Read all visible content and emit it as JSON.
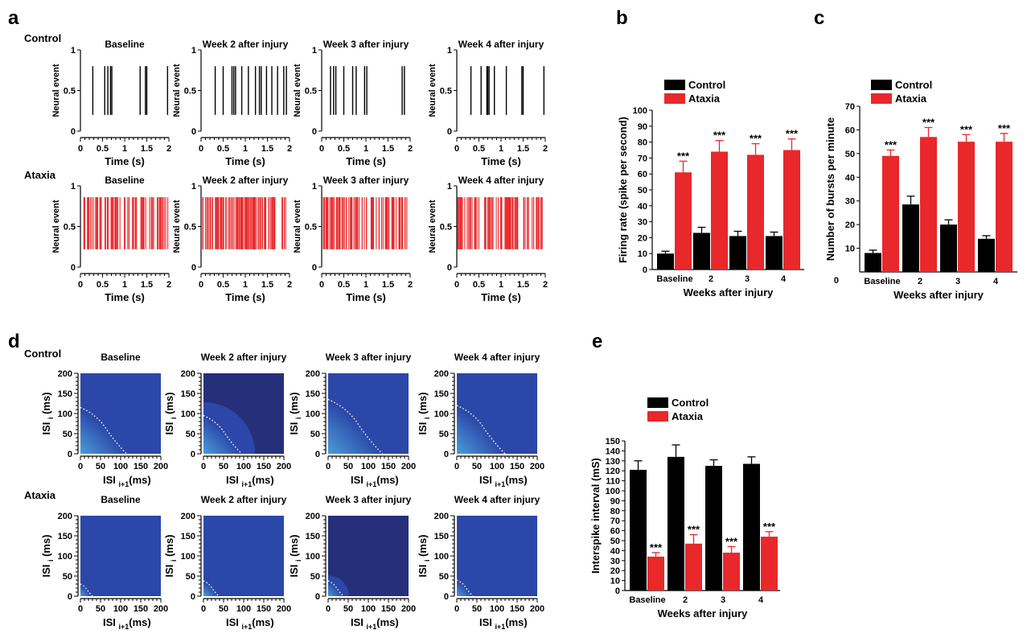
{
  "panel_letters": {
    "a": "a",
    "b": "b",
    "c": "c",
    "d": "d",
    "e": "e"
  },
  "colors": {
    "control": "#000000",
    "ataxia": "#e8282b",
    "heat_bg": "#2b47a8",
    "heat_dark": "#262f7a"
  },
  "chart_data": [
    {
      "id": "a",
      "type": "raster",
      "row_labels": [
        "Control",
        "Ataxia"
      ],
      "titles": [
        "Baseline",
        "Week 2 after injury",
        "Week 3 after injury",
        "Week 4 after injury"
      ],
      "ylabel": "Neural event",
      "xlabel": "Time (s)",
      "xticks": [
        "0",
        "0.5",
        "1",
        "1.5",
        "2"
      ],
      "yticks": [
        "0",
        "0.5",
        "1"
      ],
      "xlim": [
        0,
        2
      ],
      "ylim": [
        0,
        1
      ],
      "control_spikes": [
        [
          0.28,
          0.55,
          0.62,
          0.68,
          0.71,
          1.35,
          1.47,
          1.5,
          1.97
        ],
        [
          0.32,
          0.5,
          0.7,
          0.74,
          0.78,
          0.92,
          1.07,
          1.23,
          1.32,
          1.36,
          1.48,
          1.6,
          1.73,
          1.87,
          1.93
        ],
        [
          0.2,
          0.27,
          0.32,
          0.5,
          0.7,
          0.78,
          0.97,
          1.02,
          1.82,
          1.87
        ],
        [
          0.32,
          0.55,
          0.68,
          0.7,
          0.73,
          0.85,
          1.12,
          1.47,
          1.5,
          1.97
        ]
      ],
      "ataxia_spike_rate_per_s": [
        40,
        48,
        44,
        40
      ]
    },
    {
      "id": "b",
      "type": "bar",
      "categories": [
        "Baseline",
        "2",
        "3",
        "4"
      ],
      "series": [
        {
          "name": "Control",
          "values": [
            10,
            23,
            21,
            21
          ],
          "errors": [
            1.5,
            3.5,
            3,
            2.5
          ]
        },
        {
          "name": "Ataxia",
          "values": [
            61,
            74,
            72,
            75
          ],
          "errors": [
            7,
            7,
            7,
            7
          ]
        }
      ],
      "significance": [
        "***",
        "***",
        "***",
        "***"
      ],
      "xlabel": "Weeks after injury",
      "ylabel": "Firing rate (spike per second)",
      "ylim": [
        0,
        100
      ],
      "yticks": [
        0,
        10,
        20,
        30,
        40,
        50,
        60,
        70,
        80,
        90,
        100
      ],
      "legend": "top-left"
    },
    {
      "id": "c",
      "type": "bar",
      "categories": [
        "Baseline",
        "2",
        "3",
        "4"
      ],
      "series": [
        {
          "name": "Control",
          "values": [
            8,
            28.5,
            20,
            14
          ],
          "errors": [
            1.2,
            3.5,
            2,
            1.3
          ]
        },
        {
          "name": "Ataxia",
          "values": [
            49,
            57,
            55,
            55
          ],
          "errors": [
            2.5,
            4,
            3,
            3.5
          ]
        }
      ],
      "significance": [
        "***",
        "***",
        "***",
        "***"
      ],
      "xlabel": "Weeks after injury",
      "ylabel": "Number of bursts per minute",
      "ylim": [
        0,
        70
      ],
      "yticks": [
        10,
        20,
        30,
        40,
        50,
        60,
        70
      ],
      "origin_label": "0",
      "legend": "top-left"
    },
    {
      "id": "d",
      "type": "heatmap",
      "row_labels": [
        "Control",
        "Ataxia"
      ],
      "titles": [
        "Baseline",
        "Week 2 after injury",
        "Week 3 after injury",
        "Week 4 after injury"
      ],
      "xlabel_main": "ISI",
      "xlabel_sub": "i+1",
      "xlabel_unit": "(ms)",
      "ylabel_main": "ISI",
      "ylabel_sub": "i",
      "ylabel_unit": "(ms)",
      "xticks": [
        "0",
        "50",
        "100",
        "150",
        "200"
      ],
      "yticks": [
        "0",
        "50",
        "100",
        "150",
        "200"
      ],
      "lim": [
        0,
        200
      ],
      "control_contour_extent_ms": [
        115,
        95,
        135,
        120
      ],
      "ataxia_contour_extent_ms": [
        30,
        38,
        38,
        40
      ]
    },
    {
      "id": "e",
      "type": "bar",
      "categories": [
        "Baseline",
        "2",
        "3",
        "4"
      ],
      "series": [
        {
          "name": "Control",
          "values": [
            121,
            134,
            125,
            127
          ],
          "errors": [
            9,
            12,
            6,
            7
          ]
        },
        {
          "name": "Ataxia",
          "values": [
            34,
            47,
            38,
            54
          ],
          "errors": [
            4,
            9,
            6,
            5
          ]
        }
      ],
      "significance": [
        "***",
        "***",
        "***",
        "***"
      ],
      "xlabel": "Weeks after injury",
      "ylabel": "Interspike interval (mS)",
      "ylim": [
        0,
        150
      ],
      "yticks": [
        0,
        10,
        20,
        30,
        40,
        50,
        60,
        70,
        80,
        90,
        100,
        110,
        120,
        130,
        140,
        150
      ],
      "legend": "top-left"
    }
  ]
}
